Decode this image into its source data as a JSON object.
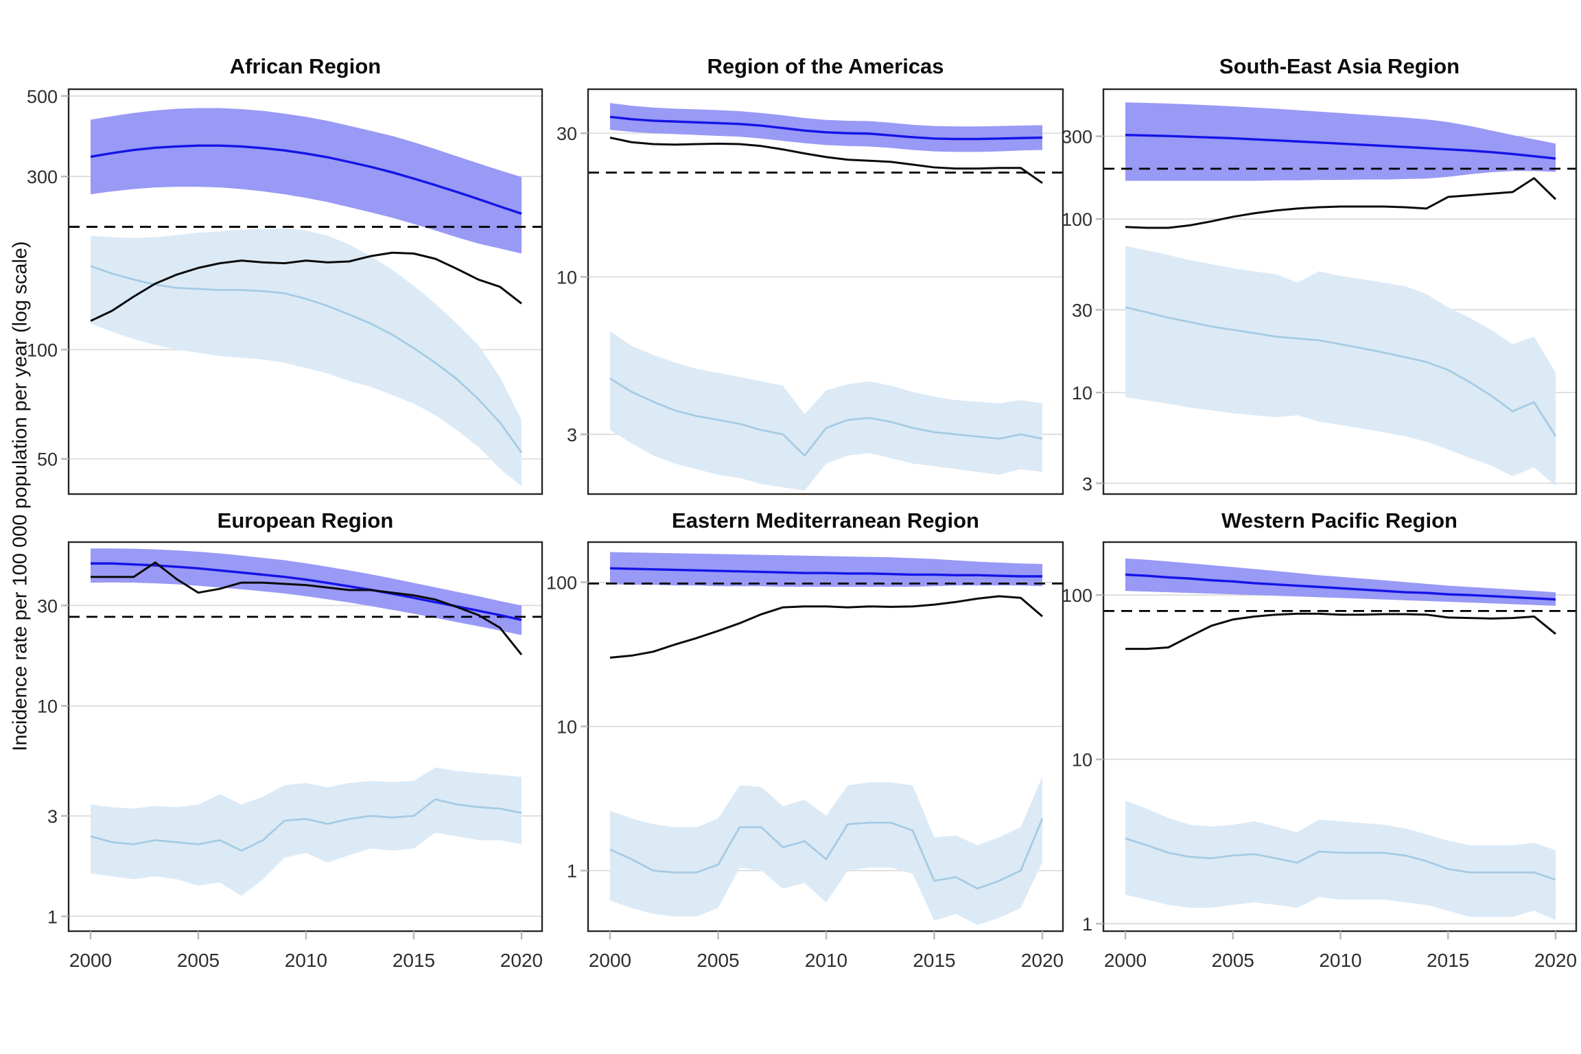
{
  "figure": {
    "y_axis_label": "Incidence rate per 100 000 population per year (log scale)",
    "x_ticks": [
      2000,
      2005,
      2010,
      2015,
      2020
    ],
    "years": [
      2000,
      2001,
      2002,
      2003,
      2004,
      2005,
      2006,
      2007,
      2008,
      2009,
      2010,
      2011,
      2012,
      2013,
      2014,
      2015,
      2016,
      2017,
      2018,
      2019,
      2020
    ],
    "colors": {
      "blue_line": "#1414E6",
      "blue_band": "#9999F6",
      "light_blue_line": "#A6CBE3",
      "light_blue_band": "#DCEAF6",
      "black_line": "#0A0A0A",
      "dashed_line": "#000000",
      "gridline": "#D8D8D8",
      "panel_border": "#262626",
      "tick": "#B8B8B8",
      "tick_label": "#2E2E2E",
      "title": "#0D0D0D"
    }
  },
  "chart_data": [
    {
      "type": "line",
      "title": "African Region",
      "ylim": [
        40,
        522
      ],
      "yticks": [
        500,
        300,
        100,
        50
      ],
      "dashed_reference_y": 218,
      "series": [
        {
          "name": "blue-line-with-band",
          "values": [
            340,
            348,
            355,
            360,
            363,
            365,
            365,
            363,
            359,
            354,
            347,
            339,
            329,
            319,
            308,
            296,
            284,
            272,
            260,
            248,
            237
          ],
          "lower": [
            268,
            273,
            277,
            280,
            281,
            281,
            280,
            277,
            273,
            268,
            262,
            255,
            247,
            239,
            231,
            222,
            213,
            204,
            196,
            190,
            184
          ],
          "upper": [
            430,
            440,
            449,
            456,
            461,
            463,
            463,
            460,
            455,
            447,
            438,
            427,
            414,
            401,
            388,
            373,
            357,
            341,
            326,
            312,
            299
          ]
        },
        {
          "name": "light-blue-line-with-band",
          "values": [
            170,
            162,
            156,
            151,
            148,
            147,
            146,
            146,
            145,
            143,
            138,
            132,
            125,
            118,
            110,
            101,
            92,
            83,
            73,
            63,
            52
          ],
          "lower": [
            118,
            112,
            107,
            103,
            100,
            98,
            96,
            95,
            94,
            92,
            89,
            86,
            82,
            79,
            75,
            71,
            66,
            60,
            54,
            47,
            42
          ],
          "upper": [
            206,
            204,
            203,
            204,
            207,
            210,
            212,
            214,
            215,
            216,
            213,
            206,
            195,
            181,
            166,
            150,
            134,
            118,
            103,
            84,
            64
          ]
        },
        {
          "name": "black-line",
          "values": [
            120,
            128,
            140,
            152,
            161,
            168,
            173,
            176,
            174,
            173,
            176,
            174,
            175,
            181,
            185,
            184,
            178,
            167,
            156,
            149,
            134
          ]
        }
      ]
    },
    {
      "type": "line",
      "title": "Region of the Americas",
      "ylim": [
        1.9,
        42
      ],
      "yticks": [
        30,
        10,
        3
      ],
      "dashed_reference_y": 22.2,
      "series": [
        {
          "name": "blue-line-with-band",
          "values": [
            34,
            33.4,
            33,
            32.8,
            32.6,
            32.4,
            32.2,
            31.8,
            31.2,
            30.6,
            30.2,
            30,
            29.9,
            29.5,
            29.1,
            28.8,
            28.7,
            28.7,
            28.8,
            28.9,
            29
          ],
          "lower": [
            30.8,
            30.3,
            30,
            29.8,
            29.6,
            29.4,
            29.2,
            28.8,
            28.3,
            27.8,
            27.4,
            27.2,
            27.1,
            26.8,
            26.4,
            26.1,
            26,
            26,
            26.1,
            26.3,
            26.4
          ],
          "upper": [
            37.8,
            37,
            36.5,
            36.2,
            36,
            35.8,
            35.5,
            35,
            34.4,
            33.7,
            33.2,
            33,
            32.9,
            32.5,
            32,
            31.7,
            31.6,
            31.6,
            31.7,
            31.8,
            31.9
          ]
        },
        {
          "name": "light-blue-line-with-band",
          "values": [
            4.6,
            4.15,
            3.85,
            3.6,
            3.45,
            3.35,
            3.25,
            3.1,
            3.0,
            2.55,
            3.15,
            3.35,
            3.4,
            3.3,
            3.15,
            3.05,
            3.0,
            2.95,
            2.9,
            3.0,
            2.9
          ],
          "lower": [
            3.1,
            2.8,
            2.55,
            2.4,
            2.3,
            2.2,
            2.15,
            2.05,
            2.0,
            1.95,
            2.4,
            2.55,
            2.6,
            2.5,
            2.4,
            2.35,
            2.3,
            2.25,
            2.2,
            2.3,
            2.25
          ],
          "upper": [
            6.6,
            5.9,
            5.5,
            5.2,
            4.95,
            4.8,
            4.65,
            4.5,
            4.35,
            3.5,
            4.2,
            4.4,
            4.5,
            4.35,
            4.15,
            4.0,
            3.9,
            3.85,
            3.8,
            3.9,
            3.8
          ]
        },
        {
          "name": "black-line",
          "values": [
            29,
            28,
            27.6,
            27.5,
            27.6,
            27.7,
            27.6,
            27.2,
            26.5,
            25.7,
            25,
            24.5,
            24.3,
            24.1,
            23.6,
            23.1,
            22.9,
            22.9,
            23,
            23,
            20.5
          ]
        }
      ]
    },
    {
      "type": "line",
      "title": "South-East Asia Region",
      "ylim": [
        2.6,
        560
      ],
      "yticks": [
        300,
        100,
        30,
        10,
        3
      ],
      "dashed_reference_y": 195,
      "series": [
        {
          "name": "blue-line-with-band",
          "values": [
            305,
            303,
            301,
            298,
            295,
            292,
            288,
            284,
            280,
            276,
            272,
            268,
            264,
            260,
            256,
            252,
            248,
            243,
            237,
            230,
            223
          ],
          "lower": [
            166,
            166,
            166,
            166,
            166,
            166,
            166,
            167,
            167,
            168,
            168,
            169,
            169,
            170,
            171,
            175,
            181,
            186,
            189,
            189,
            187
          ],
          "upper": [
            470,
            467,
            463,
            458,
            452,
            446,
            439,
            432,
            424,
            416,
            408,
            400,
            392,
            384,
            375,
            362,
            344,
            324,
            305,
            288,
            272
          ]
        },
        {
          "name": "light-blue-line-with-band",
          "values": [
            31,
            29,
            27,
            25.5,
            24,
            23,
            22,
            21,
            20.5,
            20,
            19,
            18,
            17,
            16,
            15,
            13.5,
            11.5,
            9.6,
            7.8,
            8.8,
            5.6
          ],
          "lower": [
            9.4,
            9,
            8.6,
            8.2,
            7.9,
            7.6,
            7.4,
            7.2,
            7.4,
            6.8,
            6.5,
            6.2,
            5.9,
            5.6,
            5.2,
            4.7,
            4.2,
            3.8,
            3.3,
            3.7,
            2.9
          ],
          "upper": [
            70,
            66,
            62,
            58,
            55,
            52,
            50,
            48,
            43,
            50,
            47,
            45,
            43,
            41,
            37,
            31,
            27,
            23,
            19,
            21,
            13
          ]
        },
        {
          "name": "black-line",
          "values": [
            90,
            89,
            89,
            92,
            97,
            103,
            108,
            112,
            115,
            117,
            118,
            118,
            118,
            117,
            115,
            134,
            137,
            140,
            143,
            172,
            130
          ]
        }
      ]
    },
    {
      "type": "line",
      "title": "European Region",
      "ylim": [
        0.85,
        60
      ],
      "yticks": [
        30,
        10,
        3,
        1
      ],
      "dashed_reference_y": 26.5,
      "series": [
        {
          "name": "blue-line-with-band",
          "values": [
            47.5,
            47.5,
            47,
            46.5,
            45.8,
            45,
            44,
            43,
            42,
            41,
            39.8,
            38.4,
            37,
            35.6,
            34.1,
            32.6,
            31.1,
            29.7,
            28.3,
            27,
            25.6
          ],
          "lower": [
            38.5,
            38.6,
            38.5,
            38.2,
            37.8,
            37.2,
            36.5,
            35.8,
            35,
            34.2,
            33.2,
            32.1,
            31,
            29.8,
            28.6,
            27.4,
            26.2,
            25,
            23.9,
            22.8,
            21.7
          ],
          "upper": [
            56,
            56,
            55.8,
            55.4,
            54.8,
            54,
            53,
            51.8,
            50.5,
            49.2,
            47.6,
            45.8,
            44,
            42.2,
            40.3,
            38.4,
            36.6,
            34.8,
            33.2,
            31.5,
            30
          ]
        },
        {
          "name": "light-blue-line-with-band",
          "values": [
            2.4,
            2.25,
            2.2,
            2.3,
            2.25,
            2.2,
            2.3,
            2.05,
            2.3,
            2.85,
            2.9,
            2.75,
            2.9,
            3.0,
            2.95,
            3.0,
            3.6,
            3.4,
            3.3,
            3.25,
            3.1
          ],
          "lower": [
            1.6,
            1.55,
            1.5,
            1.55,
            1.5,
            1.4,
            1.45,
            1.25,
            1.5,
            1.9,
            2.0,
            1.8,
            1.95,
            2.1,
            2.05,
            2.1,
            2.5,
            2.4,
            2.3,
            2.3,
            2.2
          ],
          "upper": [
            3.4,
            3.3,
            3.25,
            3.35,
            3.3,
            3.4,
            3.8,
            3.4,
            3.7,
            4.2,
            4.3,
            4.1,
            4.3,
            4.4,
            4.35,
            4.4,
            5.1,
            4.9,
            4.8,
            4.7,
            4.6
          ]
        },
        {
          "name": "black-line",
          "values": [
            41,
            41,
            41,
            48,
            40,
            34.5,
            36,
            38.5,
            38.5,
            38,
            37.5,
            36.5,
            35.5,
            35.5,
            34.5,
            33.5,
            32,
            29.5,
            27,
            23.5,
            17.5
          ]
        }
      ]
    },
    {
      "type": "line",
      "title": "Eastern Mediterranean Region",
      "ylim": [
        0.38,
        190
      ],
      "yticks": [
        100,
        10,
        1
      ],
      "dashed_reference_y": 98,
      "series": [
        {
          "name": "blue-line-with-band",
          "values": [
            125,
            124,
            123,
            122,
            121,
            120,
            119,
            118,
            117,
            116,
            116,
            115,
            115,
            114,
            113,
            113,
            112,
            112,
            111,
            110,
            110
          ],
          "lower": [
            97,
            96,
            96,
            95,
            95,
            94,
            94,
            94,
            93,
            93,
            93,
            93,
            93,
            93,
            93,
            94,
            95,
            95,
            95,
            95,
            94
          ],
          "upper": [
            162,
            161,
            160,
            159,
            158,
            157,
            156,
            155,
            154,
            153,
            152,
            151,
            150,
            149,
            147,
            145,
            142,
            139,
            137,
            135,
            134
          ]
        },
        {
          "name": "light-blue-line-with-band",
          "values": [
            1.4,
            1.2,
            1.0,
            0.97,
            0.97,
            1.1,
            2.0,
            2.0,
            1.45,
            1.6,
            1.2,
            2.1,
            2.15,
            2.15,
            1.9,
            0.85,
            0.9,
            0.75,
            0.85,
            1.0,
            2.3
          ],
          "lower": [
            0.62,
            0.55,
            0.5,
            0.48,
            0.48,
            0.55,
            1.05,
            1.0,
            0.75,
            0.82,
            0.6,
            1.0,
            1.05,
            1.05,
            0.95,
            0.45,
            0.5,
            0.42,
            0.47,
            0.55,
            1.15
          ],
          "upper": [
            2.6,
            2.3,
            2.1,
            2.0,
            2.0,
            2.3,
            3.9,
            3.8,
            2.8,
            3.1,
            2.4,
            3.9,
            4.1,
            4.1,
            3.9,
            1.7,
            1.75,
            1.5,
            1.7,
            2.0,
            4.5
          ]
        },
        {
          "name": "black-line",
          "values": [
            30,
            31,
            33,
            37,
            41,
            46,
            52,
            60,
            67,
            68,
            68,
            67,
            68,
            67.5,
            68,
            70,
            73,
            77,
            80,
            78,
            58
          ]
        }
      ]
    },
    {
      "type": "line",
      "title": "Western Pacific Region",
      "ylim": [
        0.9,
        210
      ],
      "yticks": [
        100,
        10,
        1
      ],
      "dashed_reference_y": 80,
      "series": [
        {
          "name": "blue-line-with-band",
          "values": [
            133,
            131,
            128,
            126,
            123,
            121,
            118,
            116,
            114,
            112,
            110,
            108,
            106,
            104,
            103,
            101,
            100,
            98.5,
            97,
            95.5,
            94
          ],
          "lower": [
            106,
            105,
            104,
            103,
            102,
            101,
            100,
            99,
            98,
            97,
            96,
            95,
            94,
            93,
            92,
            91,
            90,
            89,
            88,
            87,
            86
          ],
          "upper": [
            167,
            164,
            160,
            156,
            152,
            148,
            144,
            140,
            136,
            132,
            129,
            126,
            123,
            120,
            117,
            114,
            112,
            110,
            108,
            106,
            104
          ]
        },
        {
          "name": "light-blue-line-with-band",
          "values": [
            3.3,
            3.0,
            2.7,
            2.55,
            2.5,
            2.6,
            2.65,
            2.5,
            2.35,
            2.75,
            2.7,
            2.7,
            2.7,
            2.6,
            2.4,
            2.15,
            2.05,
            2.05,
            2.05,
            2.05,
            1.85
          ],
          "lower": [
            1.5,
            1.4,
            1.3,
            1.25,
            1.25,
            1.3,
            1.35,
            1.3,
            1.25,
            1.45,
            1.4,
            1.4,
            1.4,
            1.35,
            1.3,
            1.2,
            1.1,
            1.1,
            1.1,
            1.2,
            1.05
          ],
          "upper": [
            5.6,
            5.0,
            4.4,
            4.0,
            3.9,
            4.0,
            4.2,
            3.9,
            3.6,
            4.3,
            4.2,
            4.1,
            4.0,
            3.8,
            3.5,
            3.2,
            3.0,
            3.0,
            3.0,
            3.1,
            2.8
          ]
        },
        {
          "name": "black-line",
          "values": [
            47,
            47,
            48,
            56,
            65,
            71,
            74,
            76,
            77,
            77,
            76,
            76,
            76.5,
            76.5,
            76,
            73,
            72.5,
            72,
            72.5,
            74,
            58
          ]
        }
      ]
    }
  ]
}
